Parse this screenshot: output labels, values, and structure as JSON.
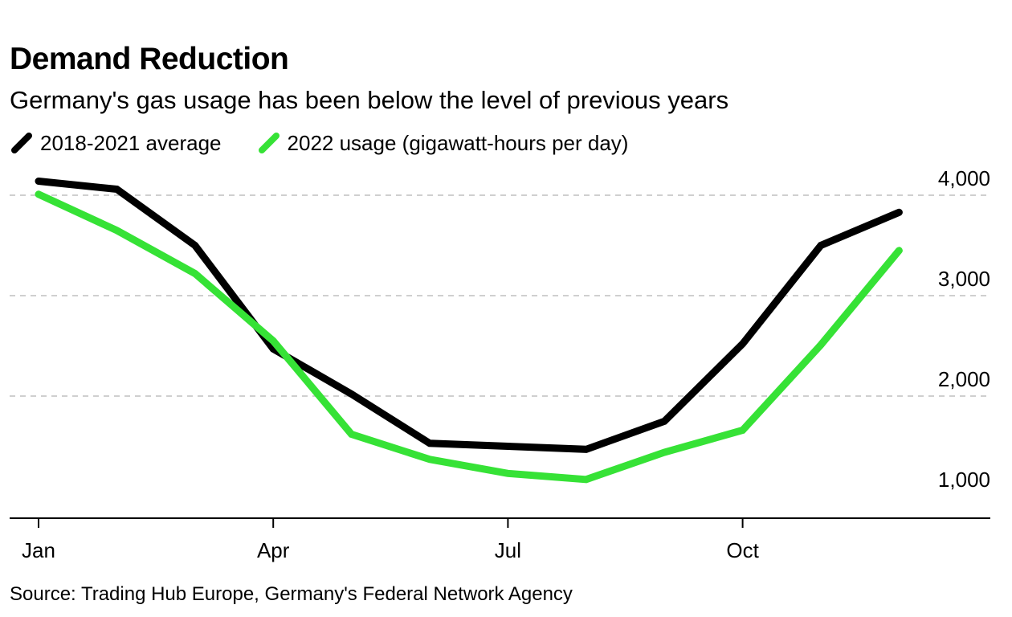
{
  "title": "Demand Reduction",
  "subtitle": "Germany's gas usage has been below the level of previous years",
  "legend": [
    {
      "label": "2018-2021 average",
      "color": "#000000"
    },
    {
      "label": "2022 usage (gigawatt-hours per day)",
      "color": "#36e236"
    }
  ],
  "source": "Source: Trading Hub Europe, Germany's Federal Network Agency",
  "chart_data": {
    "type": "line",
    "x": [
      "Jan",
      "Feb",
      "Mar",
      "Apr",
      "May",
      "Jun",
      "Jul",
      "Aug",
      "Sep",
      "Oct",
      "Nov",
      "Dec"
    ],
    "x_tick_labels": [
      {
        "label": "Jan",
        "month": "Jan"
      },
      {
        "label": "Apr",
        "month": "Apr"
      },
      {
        "label": "Jul",
        "month": "Jul"
      },
      {
        "label": "Oct",
        "month": "Oct"
      }
    ],
    "y_tick_labels": [
      {
        "label": "1,000",
        "value": 1000
      },
      {
        "label": "2,000",
        "value": 2000
      },
      {
        "label": "3,000",
        "value": 3000
      },
      {
        "label": "4,000",
        "value": 4000
      }
    ],
    "ylim": [
      820,
      4250
    ],
    "grid": true,
    "legend_position": "top-left",
    "series": [
      {
        "name": "2018-2021 average",
        "color": "#000000",
        "values": [
          4140,
          4060,
          3500,
          2470,
          2020,
          1530,
          1500,
          1470,
          1750,
          2520,
          3500,
          3830
        ]
      },
      {
        "name": "2022 usage (gigawatt-hours per day)",
        "color": "#36e236",
        "values": [
          4010,
          3650,
          3220,
          2550,
          1620,
          1370,
          1230,
          1170,
          1440,
          1660,
          2510,
          3450
        ]
      }
    ]
  }
}
